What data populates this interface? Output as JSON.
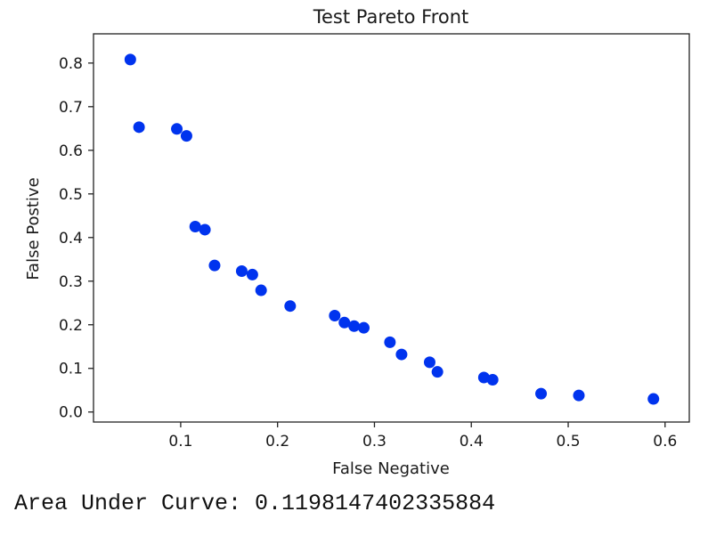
{
  "chart_data": {
    "type": "scatter",
    "title": "Test Pareto Front",
    "xlabel": "False Negative",
    "ylabel": "False Postive",
    "xlim": [
      0.01,
      0.625
    ],
    "ylim": [
      -0.023,
      0.867
    ],
    "xticks": [
      0.1,
      0.2,
      0.3,
      0.4,
      0.5,
      0.6
    ],
    "xtick_labels": [
      "0.1",
      "0.2",
      "0.3",
      "0.4",
      "0.5",
      "0.6"
    ],
    "yticks": [
      0.0,
      0.1,
      0.2,
      0.3,
      0.4,
      0.5,
      0.6,
      0.7,
      0.8
    ],
    "ytick_labels": [
      "0.0",
      "0.1",
      "0.2",
      "0.3",
      "0.4",
      "0.5",
      "0.6",
      "0.7",
      "0.8"
    ],
    "grid": false,
    "marker_color": "#0033ee",
    "points": [
      {
        "x": 0.048,
        "y": 0.808
      },
      {
        "x": 0.057,
        "y": 0.653
      },
      {
        "x": 0.096,
        "y": 0.649
      },
      {
        "x": 0.106,
        "y": 0.633
      },
      {
        "x": 0.115,
        "y": 0.425
      },
      {
        "x": 0.125,
        "y": 0.418
      },
      {
        "x": 0.135,
        "y": 0.336
      },
      {
        "x": 0.163,
        "y": 0.323
      },
      {
        "x": 0.174,
        "y": 0.315
      },
      {
        "x": 0.183,
        "y": 0.279
      },
      {
        "x": 0.213,
        "y": 0.243
      },
      {
        "x": 0.259,
        "y": 0.221
      },
      {
        "x": 0.269,
        "y": 0.205
      },
      {
        "x": 0.279,
        "y": 0.197
      },
      {
        "x": 0.289,
        "y": 0.193
      },
      {
        "x": 0.316,
        "y": 0.16
      },
      {
        "x": 0.328,
        "y": 0.132
      },
      {
        "x": 0.357,
        "y": 0.114
      },
      {
        "x": 0.365,
        "y": 0.092
      },
      {
        "x": 0.413,
        "y": 0.079
      },
      {
        "x": 0.422,
        "y": 0.074
      },
      {
        "x": 0.472,
        "y": 0.042
      },
      {
        "x": 0.511,
        "y": 0.038
      },
      {
        "x": 0.588,
        "y": 0.03
      }
    ]
  },
  "output": {
    "auc_text": "Area Under Curve: 0.1198147402335884"
  }
}
